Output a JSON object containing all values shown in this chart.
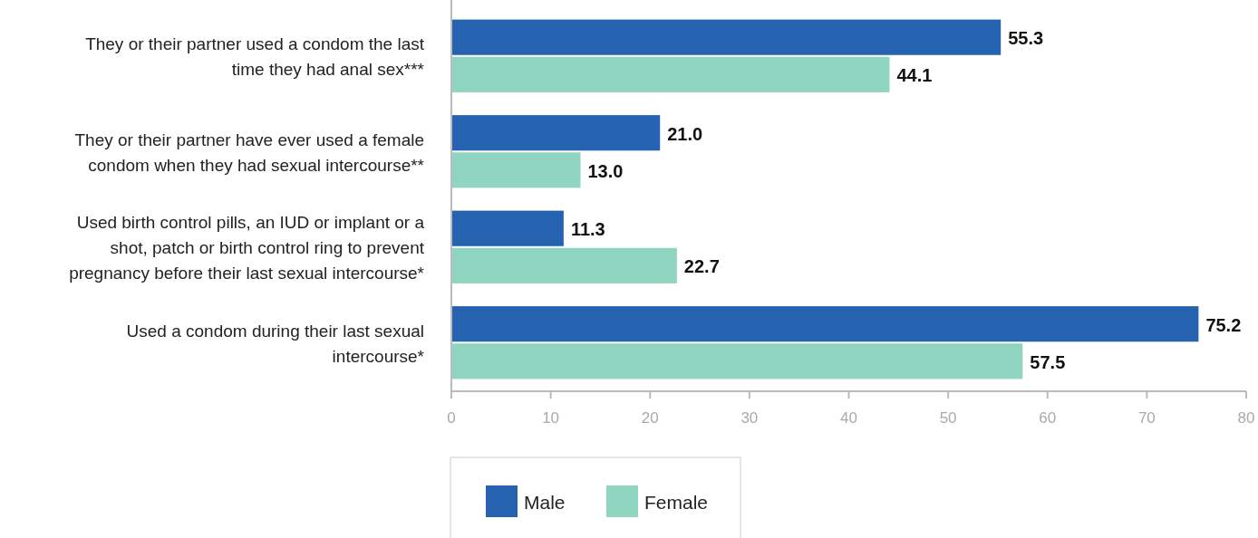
{
  "chart_data": {
    "type": "bar",
    "orientation": "horizontal",
    "categories": [
      "They or their partner used a condom the last time they had anal sex***",
      "They or their partner have ever used a female condom when they had sexual intercourse**",
      "Used birth control pills, an IUD or implant or a shot, patch or birth control ring to prevent pregnancy before their last sexual intercourse*",
      "Used a condom during their last sexual intercourse*"
    ],
    "series": [
      {
        "name": "Male",
        "color": "#2563b0",
        "values": [
          55.3,
          21.0,
          11.3,
          75.2
        ]
      },
      {
        "name": "Female",
        "color": "#8fd5bf",
        "values": [
          44.1,
          13.0,
          22.7,
          57.5
        ]
      }
    ],
    "value_labels": [
      [
        "55.3",
        "21.0",
        "11.3",
        "75.2"
      ],
      [
        "44.1",
        "13.0",
        "22.7",
        "57.5"
      ]
    ],
    "xlim": [
      0,
      80
    ],
    "xticks": [
      0,
      10,
      20,
      30,
      40,
      50,
      60,
      70,
      80
    ],
    "legend": "bottom"
  }
}
